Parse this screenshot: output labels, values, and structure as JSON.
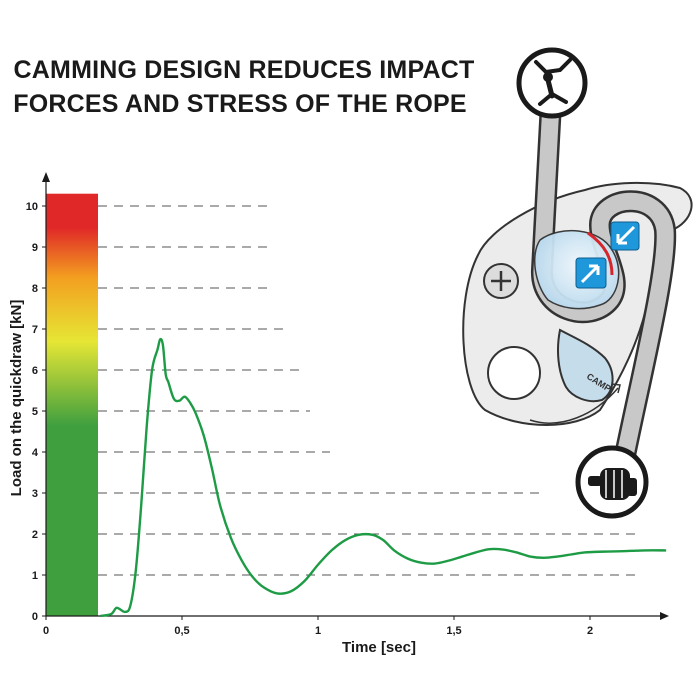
{
  "title": {
    "line1": "CAMMING DESIGN REDUCES IMPACT",
    "line2": "FORCES AND STRESS OF THE ROPE"
  },
  "chart_data": {
    "type": "line",
    "xlabel": "Time [sec]",
    "ylabel": "Load on the quickdraw [kN]",
    "xlim": [
      0,
      2.3
    ],
    "ylim": [
      0,
      10.5
    ],
    "x_ticks": [
      "0",
      "0,5",
      "1",
      "1,5",
      "2"
    ],
    "y_ticks": [
      "0",
      "1",
      "2",
      "3",
      "4",
      "5",
      "6",
      "7",
      "8",
      "9",
      "10"
    ],
    "grid": "dashed horizontal lines at each kN level",
    "color_scale": {
      "type": "gradient bar",
      "from": 0,
      "to": 10.3,
      "colors": [
        "#3f9f3f",
        "#3f9f3f",
        "#e6e635",
        "#f3a020",
        "#e02828",
        "#e02828"
      ]
    },
    "series": [
      {
        "color": "#1e9b45",
        "x": [
          0.2,
          0.24,
          0.26,
          0.29,
          0.31,
          0.33,
          0.35,
          0.37,
          0.39,
          0.41,
          0.42,
          0.43,
          0.44,
          0.45,
          0.47,
          0.49,
          0.51,
          0.53,
          0.55,
          0.58,
          0.61,
          0.64,
          0.68,
          0.72,
          0.76,
          0.8,
          0.85,
          0.9,
          0.95,
          1.0,
          1.05,
          1.1,
          1.15,
          1.2,
          1.24,
          1.28,
          1.33,
          1.38,
          1.43,
          1.48,
          1.53,
          1.58,
          1.63,
          1.68,
          1.73,
          1.78,
          1.83,
          1.88,
          1.93,
          1.98,
          2.05,
          2.12,
          2.2,
          2.28
        ],
        "y": [
          0.0,
          0.05,
          0.2,
          0.1,
          0.25,
          1.1,
          2.7,
          4.6,
          6.0,
          6.5,
          6.75,
          6.6,
          5.9,
          5.7,
          5.3,
          5.25,
          5.35,
          5.2,
          4.95,
          4.4,
          3.6,
          2.7,
          1.9,
          1.35,
          0.95,
          0.7,
          0.55,
          0.6,
          0.85,
          1.25,
          1.6,
          1.85,
          1.98,
          1.98,
          1.85,
          1.6,
          1.4,
          1.3,
          1.28,
          1.35,
          1.45,
          1.55,
          1.63,
          1.62,
          1.55,
          1.45,
          1.42,
          1.45,
          1.5,
          1.55,
          1.57,
          1.58,
          1.6,
          1.6
        ]
      }
    ]
  },
  "illustration": {
    "icons": [
      "climber-icon",
      "hand-grip-icon"
    ],
    "device": "belay-device",
    "brand_mark": "CAMP"
  }
}
